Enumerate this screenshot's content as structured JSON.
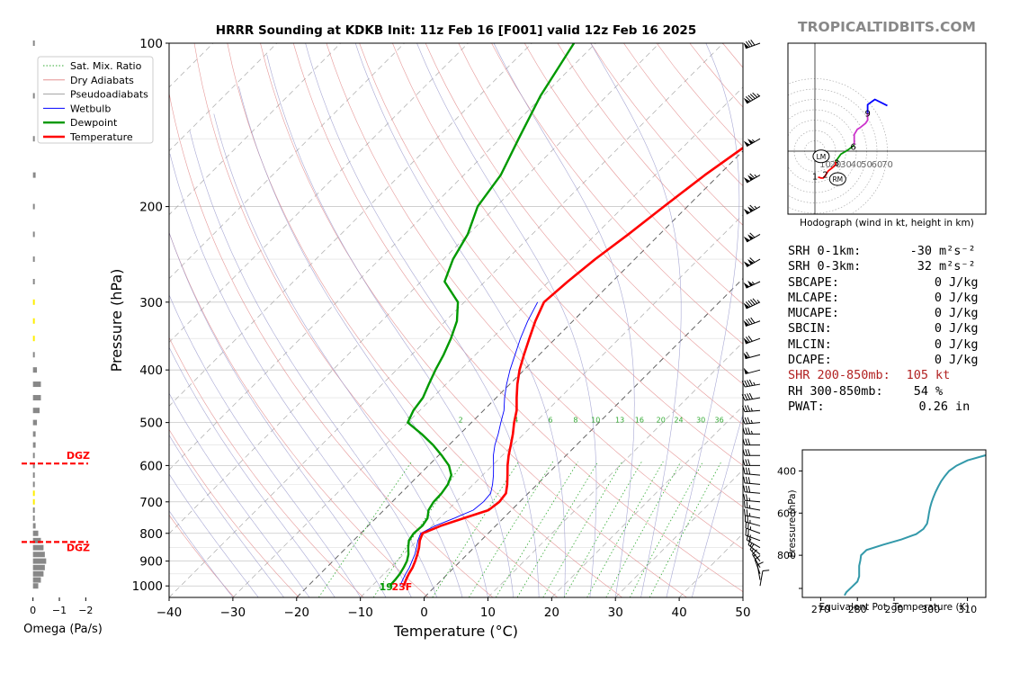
{
  "header": {
    "title": "HRRR Sounding at KDKB Init: 11z Feb 16 [F001] valid 12z Feb 16 2025",
    "brand": "TROPICALTIDBITS.COM"
  },
  "colors": {
    "temperature": "#ff0000",
    "dewpoint": "#009900",
    "wetbulb": "#0000ff",
    "dry_adiabat": "#e08080",
    "pseudoadiabat": "#9999cc",
    "mixratio": "#33aa33",
    "brand": "#888888",
    "shr": "#b22222",
    "thetae": "#3399aa",
    "omega_bar": "#888888",
    "omega_dgz": "#ffee00",
    "dgz": "#ff0000",
    "hodo_0_3": "#ff0000",
    "hodo_3_6": "#009900",
    "hodo_6_9": "#cc33cc",
    "hodo_9_12": "#0000ff"
  },
  "chart_data": [
    {
      "id": "skewt",
      "type": "line",
      "title": "HRRR Sounding at KDKB Init: 11z Feb 16 [F001] valid 12z Feb 16 2025",
      "xlabel": "Temperature (°C)",
      "ylabel": "Pressure (hPa)",
      "xlim": [
        -40,
        50
      ],
      "ylim": [
        1050,
        100
      ],
      "yscale": "log",
      "xticks": [
        -40,
        -30,
        -20,
        -10,
        0,
        10,
        20,
        30,
        40,
        50
      ],
      "xtick_labels": [
        "−40",
        "−30",
        "−20",
        "−10",
        "0",
        "10",
        "20",
        "30",
        "40",
        "50"
      ],
      "yticks": [
        1000,
        900,
        800,
        700,
        600,
        500,
        400,
        300,
        200,
        100
      ],
      "ytick_labels": [
        "1000",
        "900",
        "800",
        "700",
        "600",
        "500",
        "400",
        "300",
        "200",
        "100"
      ],
      "legend": {
        "placement": "top-left",
        "entries": [
          "Sat. Mix. Ratio",
          "Dry Adiabats",
          "Pseudoadiabats",
          "Wetbulb",
          "Dewpoint",
          "Temperature"
        ]
      },
      "mixing_ratio_labels": [
        "1",
        "2",
        "4",
        "6",
        "8",
        "10",
        "13",
        "16",
        "20",
        "24",
        "30",
        "36"
      ],
      "mixing_ratio_values": [
        1,
        2,
        4,
        6,
        8,
        10,
        13,
        16,
        20,
        24,
        30,
        36
      ],
      "surface_dewpoint_label": "19",
      "surface_temp_label": "23F",
      "series": [
        {
          "name": "Temperature",
          "p": [
            1000,
            975,
            950,
            925,
            900,
            875,
            850,
            825,
            800,
            775,
            750,
            725,
            700,
            675,
            650,
            625,
            600,
            575,
            550,
            525,
            500,
            475,
            450,
            425,
            400,
            375,
            350,
            325,
            300,
            275,
            250,
            225,
            200,
            175,
            150,
            125,
            100
          ],
          "values": [
            -5,
            -5.6,
            -6.1,
            -6.5,
            -7.1,
            -7.8,
            -8.6,
            -9.6,
            -10.3,
            -8.6,
            -6.2,
            -3.6,
            -3.2,
            -3.5,
            -4.7,
            -6.1,
            -7.6,
            -9.0,
            -10.3,
            -11.7,
            -13.3,
            -14.8,
            -16.8,
            -18.8,
            -20.7,
            -22.4,
            -24.1,
            -25.9,
            -27.5,
            -27.0,
            -26.2,
            -24.9,
            -23.7,
            -22.2,
            -19.9,
            -18.6,
            -14.5
          ]
        },
        {
          "name": "Dewpoint",
          "p": [
            1000,
            975,
            950,
            925,
            900,
            875,
            850,
            825,
            800,
            775,
            750,
            725,
            700,
            675,
            650,
            625,
            600,
            575,
            550,
            525,
            500,
            475,
            450,
            425,
            400,
            375,
            350,
            325,
            300,
            275,
            250,
            225,
            200,
            175,
            150,
            125,
            100
          ],
          "values": [
            -7.2,
            -7.3,
            -7.5,
            -7.9,
            -8.4,
            -9.2,
            -10.3,
            -11.3,
            -11.7,
            -11.5,
            -11.9,
            -13.0,
            -13.5,
            -13.6,
            -14.0,
            -14.9,
            -16.8,
            -19.5,
            -22.5,
            -26.0,
            -30.0,
            -31.0,
            -31.5,
            -32.7,
            -33.9,
            -35.0,
            -36.4,
            -38.2,
            -41.0,
            -46.3,
            -48.5,
            -50.1,
            -52.9,
            -54.2,
            -57.1,
            -60.4,
            -63.4
          ]
        },
        {
          "name": "Wetbulb",
          "p": [
            1000,
            975,
            950,
            925,
            900,
            875,
            850,
            825,
            800,
            775,
            750,
            725,
            700,
            675,
            650,
            625,
            600,
            575,
            550,
            525,
            500,
            475,
            450,
            425,
            400,
            375,
            350,
            325,
            300
          ],
          "values": [
            -5.6,
            -6.1,
            -6.6,
            -7.0,
            -7.6,
            -8.2,
            -9.0,
            -9.9,
            -10.6,
            -9.5,
            -7.7,
            -6.0,
            -5.7,
            -5.9,
            -7.0,
            -8.3,
            -9.8,
            -11.4,
            -12.8,
            -14.0,
            -15.4,
            -16.8,
            -18.7,
            -20.5,
            -22.2,
            -23.8,
            -25.5,
            -27.1,
            -28.5
          ]
        }
      ],
      "wind_barbs": {
        "p": [
          1000,
          975,
          950,
          925,
          900,
          875,
          850,
          825,
          800,
          775,
          750,
          725,
          700,
          675,
          650,
          625,
          600,
          575,
          550,
          525,
          500,
          475,
          450,
          425,
          400,
          375,
          350,
          325,
          300,
          275,
          250,
          225,
          200,
          175,
          150,
          125,
          100
        ],
        "speed_kt": [
          10,
          10,
          10,
          15,
          15,
          15,
          20,
          20,
          25,
          25,
          25,
          25,
          25,
          30,
          30,
          30,
          30,
          30,
          30,
          35,
          35,
          35,
          40,
          45,
          50,
          60,
          70,
          80,
          95,
          105,
          110,
          110,
          115,
          115,
          105,
          95,
          80
        ],
        "direction_deg": [
          10,
          350,
          340,
          330,
          320,
          310,
          300,
          290,
          290,
          285,
          280,
          280,
          275,
          275,
          275,
          275,
          270,
          270,
          270,
          270,
          265,
          265,
          260,
          260,
          255,
          255,
          250,
          250,
          245,
          245,
          240,
          240,
          240,
          240,
          240,
          240,
          250
        ]
      }
    },
    {
      "id": "omega",
      "type": "bar",
      "xlabel": "Omega (Pa/s)",
      "xlim": [
        0.5,
        -2.5
      ],
      "xticks": [
        0,
        -1,
        -2
      ],
      "xtick_labels": [
        "0",
        "−1",
        "−2"
      ],
      "p": [
        1000,
        975,
        950,
        925,
        900,
        875,
        850,
        825,
        800,
        775,
        750,
        725,
        700,
        675,
        650,
        625,
        600,
        575,
        550,
        525,
        500,
        475,
        450,
        425,
        400,
        375,
        350,
        325,
        300,
        275,
        250,
        225,
        200,
        175,
        150,
        125,
        100
      ],
      "values": [
        -0.2,
        -0.3,
        -0.4,
        -0.45,
        -0.5,
        -0.45,
        -0.4,
        -0.3,
        -0.2,
        -0.1,
        0.0,
        0.0,
        0.0,
        0.0,
        0.0,
        0.0,
        0.0,
        -0.05,
        -0.1,
        -0.1,
        -0.15,
        -0.25,
        -0.3,
        -0.3,
        -0.15,
        0.0,
        0.0,
        0.0,
        0.0,
        0.0,
        0.0,
        -0.05,
        -0.05,
        -0.1,
        -0.05,
        -0.05,
        0.0
      ],
      "in_dgz": [
        false,
        false,
        false,
        false,
        false,
        false,
        false,
        false,
        false,
        false,
        false,
        false,
        true,
        true,
        false,
        false,
        false,
        false,
        false,
        false,
        false,
        false,
        false,
        false,
        false,
        false,
        true,
        true,
        true,
        false,
        false,
        false,
        false,
        false,
        false,
        false,
        false
      ],
      "dgz_lines": [
        {
          "p": 595,
          "label": "DGZ"
        },
        {
          "p": 830,
          "label": "DGZ"
        }
      ]
    },
    {
      "id": "hodograph",
      "type": "line",
      "caption": "Hodograph (wind in kt, height in km)",
      "rings_kt": [
        10,
        20,
        30,
        40,
        50,
        60,
        70
      ],
      "ring_labels": [
        "10",
        "20",
        "30",
        "40",
        "50",
        "60",
        "70"
      ],
      "motion_labels": [
        "LM",
        "RM"
      ],
      "storm_motion": [
        {
          "label": "LM",
          "u": 6,
          "v": -5
        },
        {
          "label": "RM",
          "u": 22,
          "v": -27
        }
      ],
      "height_labels": [
        "1",
        "2",
        "3",
        "6",
        "9"
      ],
      "height_marks": [
        {
          "label": "1",
          "u": 0,
          "v": -24
        },
        {
          "label": "2",
          "u": 10,
          "v": -22
        },
        {
          "label": "3",
          "u": 21,
          "v": -11
        },
        {
          "label": "6",
          "u": 37,
          "v": 5
        },
        {
          "label": "9",
          "u": 51,
          "v": 37
        }
      ],
      "segments": [
        {
          "name": "0-3 km",
          "color_key": "hodo_0_3",
          "u": [
            3,
            6,
            8,
            10,
            11,
            13,
            17,
            20,
            20
          ],
          "v": [
            -25,
            -26,
            -26,
            -24,
            -22,
            -19,
            -16,
            -13,
            -10
          ]
        },
        {
          "name": "3-6 km",
          "color_key": "hodo_3_6",
          "u": [
            20,
            25,
            30,
            33,
            37,
            38
          ],
          "v": [
            -10,
            -3,
            0,
            2,
            5,
            6
          ]
        },
        {
          "name": "6-9 km",
          "color_key": "hodo_6_9",
          "u": [
            38,
            38,
            41,
            44,
            49,
            51,
            51
          ],
          "v": [
            6,
            16,
            21,
            23,
            27,
            30,
            37
          ]
        },
        {
          "name": "9-12 km",
          "color_key": "hodo_9_12",
          "u": [
            51,
            51,
            58,
            70
          ],
          "v": [
            37,
            45,
            50,
            44
          ]
        }
      ]
    },
    {
      "id": "theta_e",
      "type": "line",
      "xlabel": "Equivalent Pot. Temperature (K)",
      "ylabel": "Pressure (hPa)",
      "xlim": [
        265,
        315
      ],
      "ylim": [
        1000,
        300
      ],
      "xticks": [
        270,
        280,
        290,
        300,
        310
      ],
      "xtick_labels": [
        "270",
        "280",
        "290",
        "300",
        "310"
      ],
      "yticks": [
        400,
        600,
        800
      ],
      "ytick_labels": [
        "400",
        "600",
        "800"
      ],
      "p": [
        990,
        975,
        950,
        925,
        900,
        875,
        850,
        825,
        800,
        775,
        750,
        725,
        700,
        675,
        650,
        625,
        600,
        575,
        550,
        525,
        500,
        475,
        450,
        425,
        400,
        375,
        350,
        325,
        300
      ],
      "values": [
        276.5,
        277.0,
        278.5,
        280.0,
        280.5,
        280.5,
        280.5,
        280.8,
        281.0,
        282.5,
        287.0,
        292.0,
        296.0,
        298.0,
        299.0,
        299.3,
        299.5,
        299.8,
        300.2,
        300.7,
        301.3,
        302.0,
        302.8,
        303.8,
        305.0,
        307.0,
        310.0,
        315.0,
        323.0
      ]
    }
  ],
  "indices": {
    "srh01": {
      "label": "SRH 0-1km:",
      "value": "-30",
      "unit": "m²s⁻²"
    },
    "srh03": {
      "label": "SRH 0-3km:",
      "value": "32",
      "unit": "m²s⁻²"
    },
    "sbcape": {
      "label": "SBCAPE:",
      "value": "0",
      "unit": "J/kg"
    },
    "mlcape": {
      "label": "MLCAPE:",
      "value": "0",
      "unit": "J/kg"
    },
    "mucape": {
      "label": "MUCAPE:",
      "value": "0",
      "unit": "J/kg"
    },
    "sbcin": {
      "label": "SBCIN:",
      "value": "0",
      "unit": "J/kg"
    },
    "mlcin": {
      "label": "MLCIN:",
      "value": "0",
      "unit": "J/kg"
    },
    "dcape": {
      "label": "DCAPE:",
      "value": "0",
      "unit": "J/kg"
    },
    "shr": {
      "label": "SHR 200-850mb:",
      "value": "105",
      "unit": "kt"
    },
    "rh": {
      "label": "RH 300-850mb:",
      "value": "54",
      "unit": "%"
    },
    "pwat": {
      "label": "PWAT:",
      "value": "0.26",
      "unit": "in"
    }
  }
}
